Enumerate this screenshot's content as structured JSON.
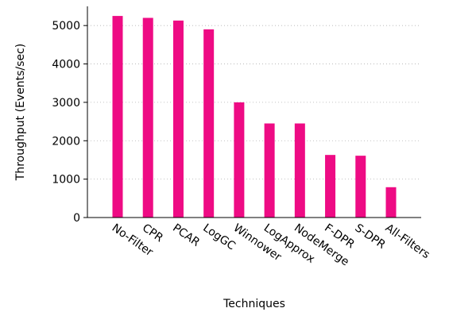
{
  "chart_data": {
    "type": "bar",
    "xlabel": "Techniques",
    "ylabel": "Throughput (Events/sec)",
    "categories": [
      "No-Filter",
      "CPR",
      "PCAR",
      "LogGC",
      "Winnower",
      "LogApprox",
      "NodeMerge",
      "F-DPR",
      "S-DPR",
      "All-Filters"
    ],
    "values": [
      5250,
      5200,
      5130,
      4900,
      3000,
      2450,
      2450,
      1630,
      1610,
      790
    ],
    "ylim": [
      0,
      5500
    ],
    "yticks": [
      0,
      1000,
      2000,
      3000,
      4000,
      5000
    ],
    "grid": true,
    "bar_color": "#ee0b84",
    "grid_color": "#b0b0b0"
  }
}
